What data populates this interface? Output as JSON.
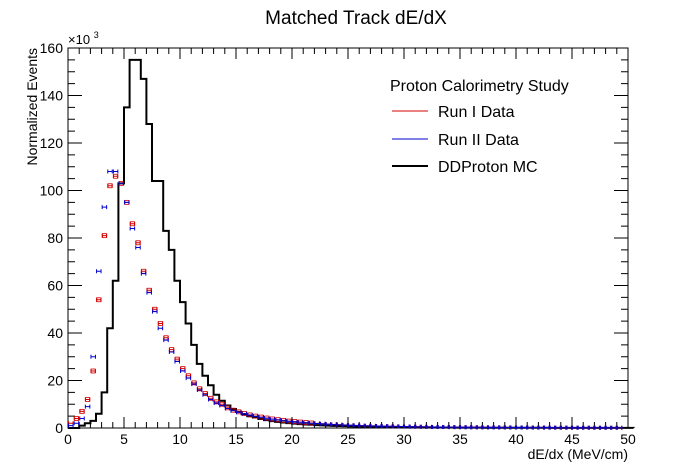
{
  "chart_data": {
    "type": "line",
    "title": "Matched Track dE/dX",
    "xlabel": "dE/dx (MeV/cm)",
    "ylabel": "Normalized Events",
    "y_multiplier": "×10",
    "y_multiplier_exp": "3",
    "xlim": [
      0,
      50
    ],
    "ylim": [
      0,
      160
    ],
    "x_ticks": [
      0,
      5,
      10,
      15,
      20,
      25,
      30,
      35,
      40,
      45,
      50
    ],
    "y_ticks": [
      0,
      20,
      40,
      60,
      80,
      100,
      120,
      140,
      160
    ],
    "bin_width": 0.5,
    "legend": {
      "header": "Proton Calorimetry Study",
      "position": "top-right",
      "entries": [
        "Run I Data",
        "Run II Data",
        "DDProton MC"
      ]
    },
    "series": [
      {
        "name": "Run I Data",
        "style": "points",
        "color": "#d40000",
        "x": [
          0.5,
          1.0,
          1.5,
          2.0,
          2.5,
          3.0,
          3.5,
          4.0,
          4.5,
          5.0,
          5.5,
          6.0,
          6.5,
          7.0,
          7.5,
          8.0,
          8.5,
          9.0,
          9.5,
          10.0,
          10.5,
          11.0,
          11.5,
          12.0,
          12.5,
          13.0,
          13.5,
          14.0,
          14.5,
          15.0,
          15.5,
          16.0,
          16.5,
          17.0,
          17.5,
          18.0,
          18.5,
          19.0,
          19.5,
          20.0,
          20.5,
          21.0,
          21.5,
          22.0,
          22.5,
          23.0,
          23.5,
          24.0,
          24.5,
          25.0,
          25.5,
          26.0,
          26.5,
          27.0,
          27.5,
          28.0,
          28.5,
          29.0,
          29.5,
          30.0,
          30.5,
          31.0,
          31.5,
          32.0,
          32.5,
          33.0,
          33.5,
          34.0,
          34.5,
          35.0,
          35.5,
          36.0,
          36.5,
          37.0,
          37.5,
          38.0,
          38.5,
          39.0,
          39.5,
          40.0,
          40.5,
          41.0,
          41.5,
          42.0,
          42.5,
          43.0,
          43.5,
          44.0,
          44.5,
          45.0,
          45.5,
          46.0,
          46.5,
          47.0,
          47.5,
          48.0,
          48.5,
          49.0,
          49.5
        ],
        "y": [
          2,
          4,
          7,
          12,
          24,
          54,
          81,
          102,
          106,
          103,
          95,
          86,
          78,
          66,
          58,
          50,
          44,
          38,
          33,
          29,
          25,
          22,
          19,
          16.5,
          14.5,
          12.5,
          11,
          10,
          8.5,
          7.5,
          6.8,
          6.1,
          5.5,
          5.0,
          4.6,
          4.2,
          3.8,
          3.5,
          3.2,
          2.9,
          2.7,
          2.5,
          2.3,
          2.1,
          1.95,
          1.8,
          1.65,
          1.5,
          1.4,
          1.3,
          1.2,
          1.1,
          1.0,
          0.95,
          0.9,
          0.85,
          0.8,
          0.75,
          0.7,
          0.65,
          0.6,
          0.57,
          0.54,
          0.51,
          0.48,
          0.45,
          0.43,
          0.41,
          0.39,
          0.37,
          0.35,
          0.33,
          0.31,
          0.3,
          0.28,
          0.27,
          0.26,
          0.25,
          0.24,
          0.23,
          0.22,
          0.21,
          0.2,
          0.19,
          0.18,
          0.17,
          0.16,
          0.15,
          0.15,
          0.14,
          0.13,
          0.13,
          0.12,
          0.12,
          0.11,
          0.11,
          0.1,
          0.1,
          0.1
        ]
      },
      {
        "name": "Run II Data",
        "style": "points",
        "color": "#0000cc",
        "x": [
          0.5,
          1.0,
          1.5,
          2.0,
          2.5,
          3.0,
          3.5,
          4.0,
          4.5,
          5.0,
          5.5,
          6.0,
          6.5,
          7.0,
          7.5,
          8.0,
          8.5,
          9.0,
          9.5,
          10.0,
          10.5,
          11.0,
          11.5,
          12.0,
          12.5,
          13.0,
          13.5,
          14.0,
          14.5,
          15.0,
          15.5,
          16.0,
          16.5,
          17.0,
          17.5,
          18.0,
          18.5,
          19.0,
          19.5,
          20.0,
          20.5,
          21.0,
          21.5,
          22.0,
          22.5,
          23.0,
          23.5,
          24.0,
          24.5,
          25.0,
          25.5,
          26.0,
          26.5,
          27.0,
          27.5,
          28.0,
          28.5,
          29.0,
          29.5,
          30.0,
          30.5,
          31.0,
          31.5,
          32.0,
          32.5,
          33.0,
          33.5,
          34.0,
          34.5,
          35.0,
          35.5,
          36.0,
          36.5,
          37.0,
          37.5,
          38.0,
          38.5,
          39.0,
          39.5,
          40.0,
          40.5,
          41.0,
          41.5,
          42.0,
          42.5,
          43.0,
          43.5,
          44.0,
          44.5,
          45.0,
          45.5,
          46.0,
          46.5,
          47.0,
          47.5,
          48.0,
          48.5,
          49.0,
          49.5
        ],
        "y": [
          1,
          2,
          4,
          9,
          30,
          66,
          93,
          108,
          108,
          103,
          95,
          84,
          76,
          65,
          57,
          49,
          42,
          37,
          32,
          28,
          24,
          21,
          18.5,
          16,
          14,
          12,
          10.5,
          9.5,
          8.2,
          7.3,
          6.6,
          6.0,
          5.4,
          4.9,
          4.5,
          4.1,
          3.7,
          3.4,
          3.1,
          2.8,
          2.6,
          2.4,
          2.2,
          2.0,
          1.9,
          1.75,
          1.6,
          1.45,
          1.35,
          1.25,
          1.15,
          1.05,
          0.98,
          0.92,
          0.87,
          0.82,
          0.77,
          0.72,
          0.67,
          0.63,
          0.59,
          0.55,
          0.52,
          0.49,
          0.46,
          0.44,
          0.42,
          0.4,
          0.38,
          0.36,
          0.34,
          0.32,
          0.3,
          0.29,
          0.27,
          0.26,
          0.25,
          0.24,
          0.23,
          0.22,
          0.21,
          0.2,
          0.19,
          0.18,
          0.17,
          0.16,
          0.15,
          0.15,
          0.14,
          0.13,
          0.13,
          0.12,
          0.12,
          0.11,
          0.11,
          0.1,
          0.1,
          0.1,
          0.1
        ]
      },
      {
        "name": "DDProton MC",
        "style": "step",
        "color": "#000000",
        "y": [
          0,
          0,
          1,
          2,
          3,
          6,
          15,
          42,
          62,
          103,
          135,
          155,
          155,
          147,
          128,
          104,
          104,
          83,
          75,
          62,
          53,
          44,
          35,
          27,
          22,
          18,
          14,
          11.5,
          9.5,
          8,
          6.8,
          5.8,
          5.0,
          4.4,
          3.8,
          3.3,
          2.9,
          2.6,
          2.3,
          2.05,
          1.85,
          1.65,
          1.5,
          1.35,
          1.22,
          1.1,
          1.0,
          0.92,
          0.84,
          0.77,
          0.7,
          0.64,
          0.59,
          0.54,
          0.5,
          0.46,
          0.43,
          0.4,
          0.37,
          0.34,
          0.32,
          0.3,
          0.28,
          0.26,
          0.24,
          0.23,
          0.21,
          0.2,
          0.19,
          0.18,
          0.17,
          0.16,
          0.15,
          0.14,
          0.13,
          0.13,
          0.12,
          0.11,
          0.11,
          0.1,
          0.1,
          0.09,
          0.09,
          0.08,
          0.08,
          0.08,
          0.07,
          0.07,
          0.07,
          0.06,
          0.06,
          0.06,
          0.06,
          0.05,
          0.05,
          0.05,
          0.05,
          0.05,
          0.04,
          0.04,
          0.04
        ]
      }
    ]
  }
}
